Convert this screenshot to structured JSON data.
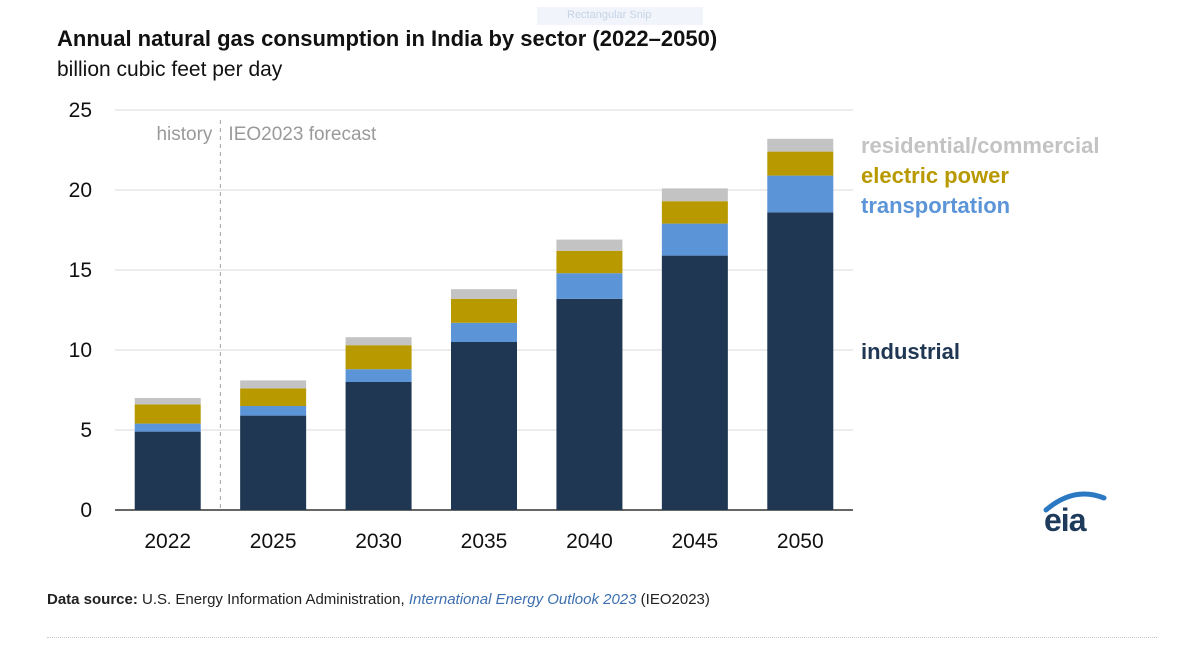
{
  "header": {
    "title": "Annual natural gas consumption in India by sector (2022–2050)",
    "subtitle": "billion cubic feet per day"
  },
  "banner": {
    "text": "Rectangular Snip"
  },
  "annotations": {
    "history": "history",
    "forecast": "IEO2023  forecast"
  },
  "source": {
    "label": "Data source:",
    "text": "U.S. Energy Information Administration,",
    "link": "International Energy Outlook 2023",
    "suffix": "(IEO2023)"
  },
  "logo": {
    "text": "eia",
    "icon": "eia-logo-icon"
  },
  "colors": {
    "industrial": "#1f3752",
    "transportation": "#5b95d8",
    "electric_power": "#b89a00",
    "residential_commercial": "#c3c3c3",
    "grid": "#d9d9d9",
    "divider": "#b0b0b0"
  },
  "chart_data": {
    "type": "bar",
    "stacked": true,
    "title": "Annual natural gas consumption in India by sector (2022–2050)",
    "subtitle": "billion cubic feet per day",
    "xlabel": "",
    "ylabel": "",
    "categories": [
      "2022",
      "2025",
      "2030",
      "2035",
      "2040",
      "2045",
      "2050"
    ],
    "ylim": [
      0,
      25
    ],
    "yticks": [
      0,
      5,
      10,
      15,
      20,
      25
    ],
    "grid": true,
    "legend_position": "right",
    "series": [
      {
        "name": "industrial",
        "color": "#1f3752",
        "values": [
          4.9,
          5.9,
          8.0,
          10.5,
          13.2,
          15.9,
          18.6
        ]
      },
      {
        "name": "transportation",
        "color": "#5b95d8",
        "values": [
          0.5,
          0.6,
          0.8,
          1.2,
          1.6,
          2.0,
          2.3
        ]
      },
      {
        "name": "electric power",
        "color": "#b89a00",
        "values": [
          1.2,
          1.1,
          1.5,
          1.5,
          1.4,
          1.4,
          1.5
        ]
      },
      {
        "name": "residential/commercial",
        "color": "#c3c3c3",
        "values": [
          0.4,
          0.5,
          0.5,
          0.6,
          0.7,
          0.8,
          0.8
        ]
      }
    ],
    "period_divider_after": "2022"
  }
}
